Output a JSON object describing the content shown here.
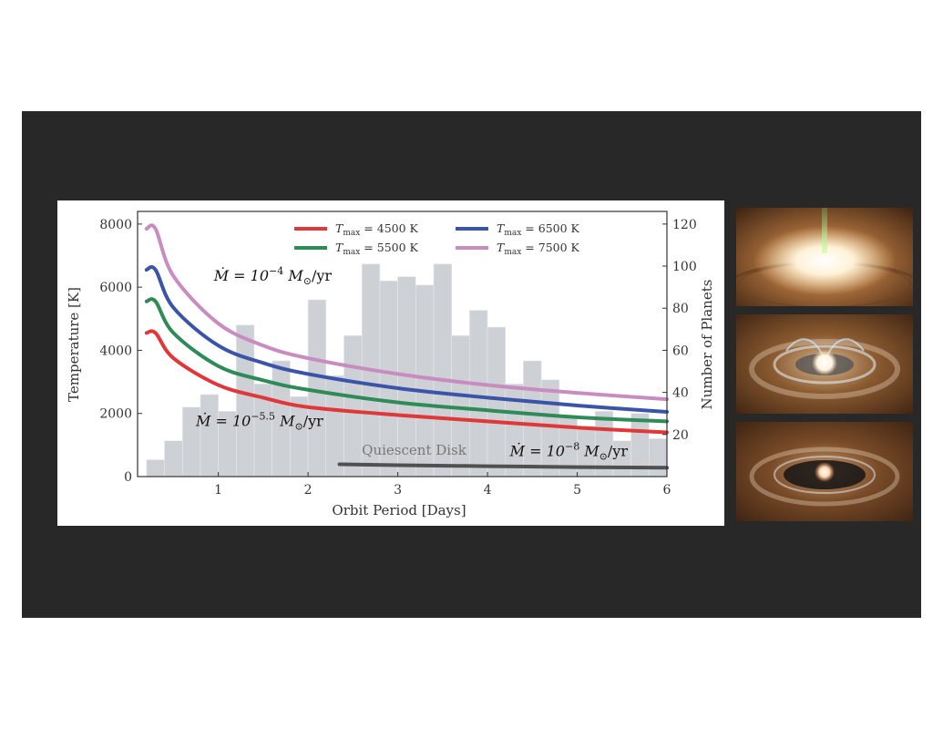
{
  "chart_data": {
    "type": "line",
    "xlabel": "Orbit Period [Days]",
    "ylabel": "Temperature [K]",
    "y2label": "Number of Planets",
    "xlim": [
      0.1,
      6
    ],
    "ylim": [
      0,
      8400
    ],
    "y2lim": [
      0,
      126
    ],
    "xticks": [
      "1",
      "2",
      "3",
      "4",
      "5",
      "6"
    ],
    "yticks": [
      "0",
      "2000",
      "4000",
      "6000",
      "8000"
    ],
    "y2ticks": [
      "20",
      "40",
      "60",
      "80",
      "100",
      "120"
    ],
    "grid": false,
    "legend_position": "top",
    "series": [
      {
        "name": "T_max = 4500 K",
        "legend_main": "T",
        "legend_sub": "max",
        "legend_rest": " = 4500 K",
        "color": "#e03838",
        "x": [
          0.2,
          0.3,
          0.5,
          1,
          1.5,
          2,
          3,
          4,
          5,
          6
        ],
        "y": [
          4550,
          4550,
          3750,
          2900,
          2500,
          2200,
          1950,
          1750,
          1550,
          1400
        ]
      },
      {
        "name": "T_max = 5500 K",
        "legend_main": "T",
        "legend_sub": "max",
        "legend_rest": " = 5500 K",
        "color": "#2e8b57",
        "x": [
          0.2,
          0.3,
          0.5,
          1,
          1.5,
          2,
          3,
          4,
          5,
          6
        ],
        "y": [
          5550,
          5550,
          4550,
          3500,
          3050,
          2750,
          2350,
          2100,
          1880,
          1750
        ]
      },
      {
        "name": "T_max = 6500 K",
        "legend_main": "T",
        "legend_sub": "max",
        "legend_rest": " = 6500 K",
        "color": "#3a54a8",
        "x": [
          0.2,
          0.3,
          0.5,
          1,
          1.5,
          2,
          3,
          4,
          5,
          6
        ],
        "y": [
          6550,
          6550,
          5350,
          4150,
          3600,
          3250,
          2800,
          2500,
          2250,
          2050
        ]
      },
      {
        "name": "T_max = 7500 K",
        "legend_main": "T",
        "legend_sub": "max",
        "legend_rest": " = 7500 K",
        "color": "#c88cc0",
        "x": [
          0.2,
          0.3,
          0.5,
          1,
          1.5,
          2,
          3,
          4,
          5,
          6
        ],
        "y": [
          7850,
          7850,
          6350,
          4850,
          4150,
          3750,
          3250,
          2900,
          2650,
          2450
        ]
      },
      {
        "name": "Quiescent Disk",
        "color": "#505050",
        "x": [
          2.35,
          3,
          4,
          5,
          6
        ],
        "y": [
          390,
          360,
          330,
          300,
          280
        ]
      }
    ],
    "histogram": {
      "color": "#cdd1d6",
      "bin_width": 0.2,
      "bin_starts": [
        0.2,
        0.4,
        0.6,
        0.8,
        1.0,
        1.2,
        1.4,
        1.6,
        1.8,
        2.0,
        2.2,
        2.4,
        2.6,
        2.8,
        3.0,
        3.2,
        3.4,
        3.6,
        3.8,
        4.0,
        4.2,
        4.4,
        4.6,
        4.8,
        5.0,
        5.2,
        5.4,
        5.6,
        5.8
      ],
      "counts": [
        8,
        17,
        33,
        39,
        31,
        72,
        44,
        55,
        38,
        84,
        48,
        67,
        101,
        93,
        95,
        91,
        101,
        67,
        79,
        71,
        44,
        55,
        46,
        28,
        24,
        31,
        17,
        30,
        18
      ]
    },
    "annotations": [
      {
        "id": "mdot4",
        "lead": "Ṁ = 10",
        "sup": "−4",
        "tail": " M",
        "sub": "⊙",
        "end": "/yr",
        "x": 0.95,
        "y": 6200
      },
      {
        "id": "mdot55",
        "lead": "Ṁ = 10",
        "sup": "−5.5",
        "tail": " M",
        "sub": "⊙",
        "end": "/yr",
        "x": 0.75,
        "y": 1600
      },
      {
        "id": "mdot8",
        "lead": "Ṁ = 10",
        "sup": "−8",
        "tail": " M",
        "sub": "⊙",
        "end": "/yr",
        "x": 4.25,
        "y": 650
      },
      {
        "id": "quiescent",
        "label": "Quiescent Disk",
        "x": 2.6,
        "y": 700
      }
    ]
  },
  "images": [
    {
      "id": "disk-1",
      "desc_icon": "accretion-disk-jet-icon"
    },
    {
      "id": "disk-2",
      "desc_icon": "disk-with-magnetosphere-icon"
    },
    {
      "id": "disk-3",
      "desc_icon": "quiescent-disk-icon"
    }
  ]
}
